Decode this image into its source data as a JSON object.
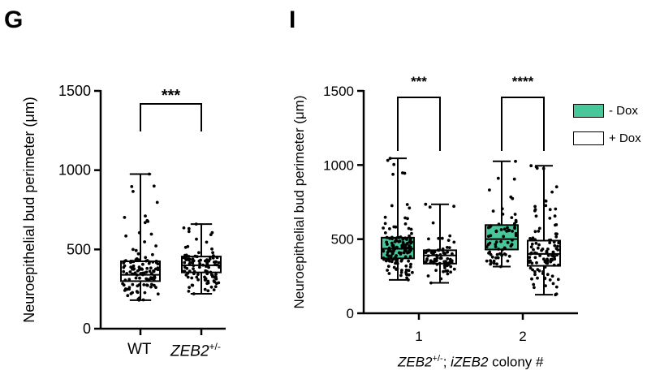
{
  "panels": {
    "g": {
      "letter": "G"
    },
    "i": {
      "letter": "I"
    }
  },
  "colors": {
    "minus_dox": "#47c79a",
    "plus_dox": "#ffffff",
    "points": "#000000"
  },
  "chart_data": [
    {
      "panel": "G",
      "type": "box",
      "title": "",
      "ylabel": "Neuroepithelial bud perimeter (μm)",
      "xlabel": "",
      "ylim": [
        0,
        1500
      ],
      "yticks": [
        0,
        500,
        1000,
        1500
      ],
      "categories": [
        "WT",
        "ZEB2+/-"
      ],
      "category_display": [
        {
          "main": "WT",
          "sup": ""
        },
        {
          "main": "ZEB2",
          "sup": "+/-"
        }
      ],
      "boxes": [
        {
          "category": "WT",
          "min": 180,
          "q1": 300,
          "median": 340,
          "q3": 425,
          "max": 975,
          "n_points": 120,
          "fill": "#ffffff"
        },
        {
          "category": "ZEB2+/-",
          "min": 220,
          "q1": 355,
          "median": 400,
          "q3": 455,
          "max": 660,
          "n_points": 110,
          "fill": "#ffffff"
        }
      ],
      "significance": [
        {
          "between": [
            "WT",
            "ZEB2+/-"
          ],
          "label": "***"
        }
      ]
    },
    {
      "panel": "I",
      "type": "box",
      "title": "",
      "ylabel": "Neuroepithelial bud perimeter (μm)",
      "xlabel_parts": {
        "gene1": "ZEB2",
        "sup": "+/-",
        "sep": "; ",
        "gene2": "iZEB2",
        "rest": " colony #"
      },
      "ylim": [
        0,
        1500
      ],
      "yticks": [
        0,
        500,
        1000,
        1500
      ],
      "categories": [
        "1",
        "2"
      ],
      "legend": {
        "placement": "top-right",
        "entries": [
          "- Dox",
          "+ Dox"
        ]
      },
      "boxes": [
        {
          "category": "1",
          "series": "- Dox",
          "min": 225,
          "q1": 370,
          "median": 435,
          "q3": 510,
          "max": 1045,
          "n_points": 130,
          "fill": "#47c79a"
        },
        {
          "category": "1",
          "series": "+ Dox",
          "min": 205,
          "q1": 335,
          "median": 390,
          "q3": 425,
          "max": 735,
          "n_points": 80,
          "fill": "#ffffff"
        },
        {
          "category": "2",
          "series": "- Dox",
          "min": 315,
          "q1": 430,
          "median": 500,
          "q3": 595,
          "max": 1025,
          "n_points": 70,
          "fill": "#47c79a"
        },
        {
          "category": "2",
          "series": "+ Dox",
          "min": 125,
          "q1": 320,
          "median": 400,
          "q3": 490,
          "max": 995,
          "n_points": 110,
          "fill": "#ffffff"
        }
      ],
      "significance": [
        {
          "category": "1",
          "label": "***"
        },
        {
          "category": "2",
          "label": "****"
        }
      ]
    }
  ]
}
